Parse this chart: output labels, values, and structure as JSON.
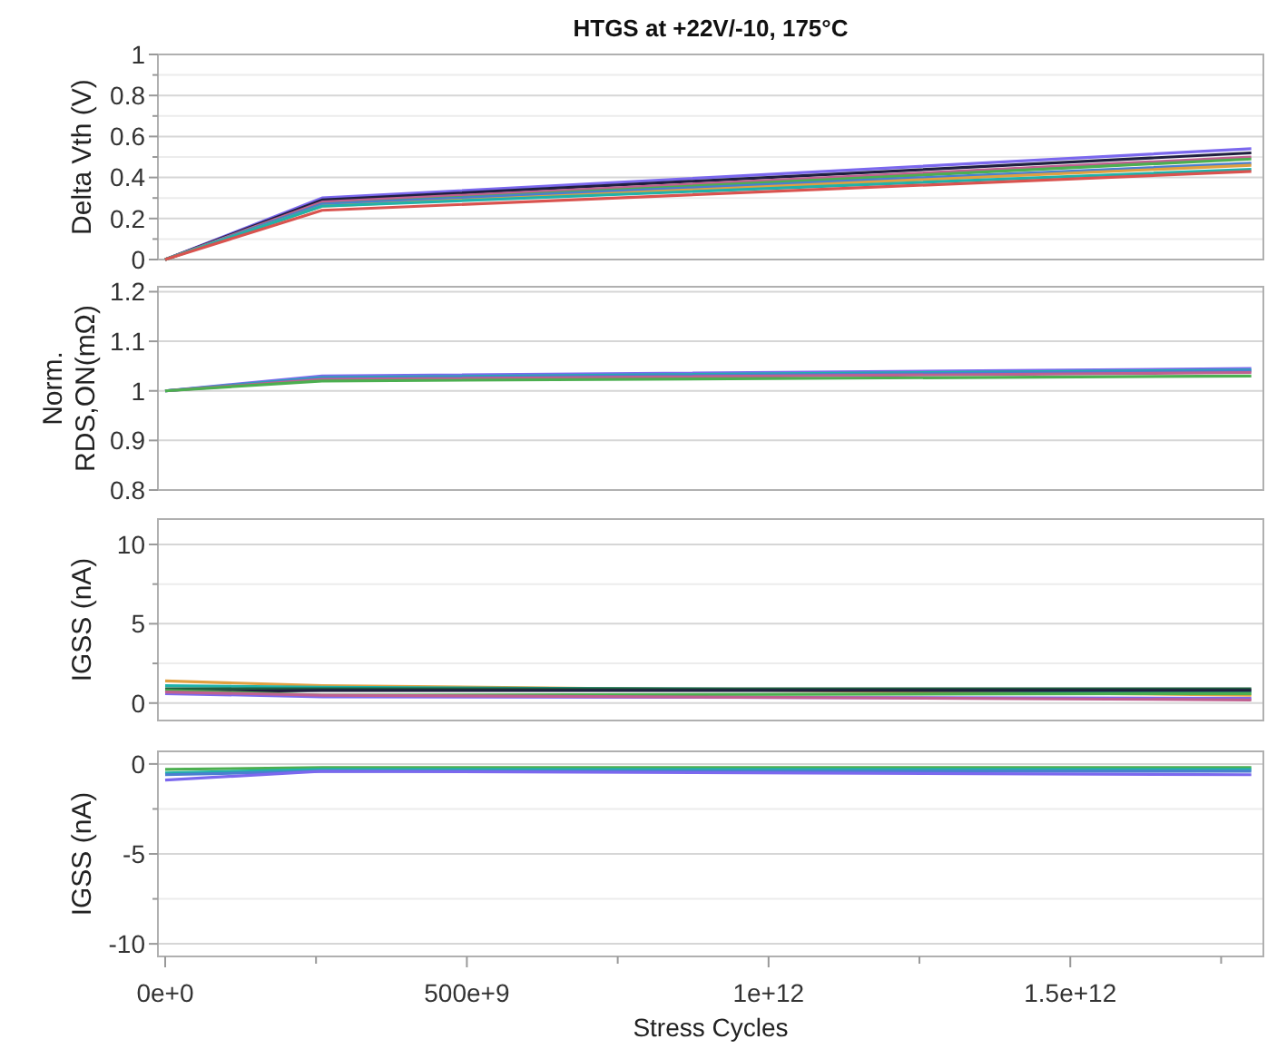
{
  "chart_data": [
    {
      "type": "line",
      "title": "HTGS at +22V/-10, 175°C",
      "ylabel": "Delta Vth (V)",
      "x": [
        0,
        260000000000,
        1800000000000
      ],
      "xlim": [
        -12000000000,
        1820000000000
      ],
      "ylim": [
        0,
        1
      ],
      "yticks": [
        0,
        {
          "value": 0.1,
          "label": null
        },
        0.2,
        {
          "value": 0.3,
          "label": null
        },
        0.4,
        {
          "value": 0.5,
          "label": null
        },
        0.6,
        {
          "value": 0.7,
          "label": null
        },
        0.8,
        {
          "value": 0.9,
          "label": null
        },
        1
      ],
      "grid": "y",
      "tick_labels": "y",
      "series": [
        {
          "color": "#7b68ee",
          "values": [
            0,
            0.3,
            0.54
          ]
        },
        {
          "color": "#1f1f3f",
          "values": [
            0,
            0.29,
            0.52
          ]
        },
        {
          "color": "#c06090",
          "values": [
            0,
            0.28,
            0.5
          ]
        },
        {
          "color": "#4caf50",
          "values": [
            0,
            0.27,
            0.49
          ]
        },
        {
          "color": "#4a7fd0",
          "values": [
            0,
            0.27,
            0.47
          ]
        },
        {
          "color": "#e0a040",
          "values": [
            0,
            0.26,
            0.46
          ]
        },
        {
          "color": "#20b2aa",
          "values": [
            0,
            0.26,
            0.44
          ]
        },
        {
          "color": "#d9534f",
          "values": [
            0,
            0.24,
            0.43
          ]
        }
      ]
    },
    {
      "type": "line",
      "ylabel": "Norm.\nRDS,ON(mΩ)",
      "x": [
        0,
        260000000000,
        1800000000000
      ],
      "xlim": [
        -12000000000,
        1820000000000
      ],
      "ylim": [
        0.8,
        1.21
      ],
      "yticks": [
        0.8,
        0.9,
        1,
        1.1,
        1.2
      ],
      "grid": "y",
      "tick_labels": "y",
      "series": [
        {
          "color": "#7b68ee",
          "values": [
            1,
            1.03,
            1.045
          ]
        },
        {
          "color": "#20b2aa",
          "values": [
            1,
            1.027,
            1.042
          ]
        },
        {
          "color": "#4a7fd0",
          "values": [
            1,
            1.025,
            1.04
          ]
        },
        {
          "color": "#c06090",
          "values": [
            1,
            1.023,
            1.037
          ]
        },
        {
          "color": "#4caf50",
          "values": [
            1,
            1.02,
            1.03
          ]
        }
      ]
    },
    {
      "type": "line",
      "ylabel": "IGSS (nA)",
      "x": [
        0,
        260000000000,
        1800000000000
      ],
      "xlim": [
        -12000000000,
        1820000000000
      ],
      "ylim": [
        -1.1,
        11.6
      ],
      "yticks": [
        0,
        {
          "value": 2.5,
          "label": null
        },
        5,
        {
          "value": 7.5,
          "label": null
        },
        10
      ],
      "grid": "y",
      "tick_labels": "y",
      "series": [
        {
          "color": "#e0a040",
          "values": [
            1.4,
            1.1,
            0.5
          ]
        },
        {
          "color": "#20b2aa",
          "values": [
            1.1,
            1,
            0.7
          ]
        },
        {
          "color": "#1f5f3f",
          "values": [
            0.9,
            0.9,
            0.9
          ]
        },
        {
          "color": "#1f1f3f",
          "values": [
            0.7,
            0.8,
            0.8
          ]
        },
        {
          "color": "#4caf50",
          "values": [
            0.8,
            0.5,
            0.6
          ]
        },
        {
          "color": "#7b68ee",
          "values": [
            0.6,
            0.4,
            0.3
          ]
        },
        {
          "color": "#c06090",
          "values": [
            0.7,
            0.5,
            0.2
          ]
        }
      ]
    },
    {
      "type": "line",
      "ylabel": "IGSS (nA)",
      "xlabel": "Stress Cycles",
      "x": [
        0,
        260000000000,
        1800000000000
      ],
      "xlim": [
        -12000000000,
        1820000000000
      ],
      "xticks": [
        {
          "value": 0,
          "label": "0e+0"
        },
        {
          "value": 250000000000,
          "label": null
        },
        {
          "value": 500000000000,
          "label": "500e+9"
        },
        {
          "value": 750000000000,
          "label": null
        },
        {
          "value": 1000000000000,
          "label": "1e+12"
        },
        {
          "value": 1250000000000,
          "label": null
        },
        {
          "value": 1500000000000,
          "label": "1.5e+12"
        },
        {
          "value": 1750000000000,
          "label": null
        }
      ],
      "ylim": [
        -10.7,
        0.7
      ],
      "yticks": [
        -10,
        {
          "value": -7.5,
          "label": null
        },
        -5,
        {
          "value": -2.5,
          "label": null
        },
        0
      ],
      "grid": "y",
      "series": [
        {
          "color": "#4caf50",
          "values": [
            -0.3,
            -0.2,
            -0.2
          ]
        },
        {
          "color": "#20b2aa",
          "values": [
            -0.5,
            -0.3,
            -0.3
          ]
        },
        {
          "color": "#4a7fd0",
          "values": [
            -0.6,
            -0.4,
            -0.4
          ]
        },
        {
          "color": "#7b68ee",
          "values": [
            -0.9,
            -0.4,
            -0.6
          ]
        }
      ]
    }
  ]
}
